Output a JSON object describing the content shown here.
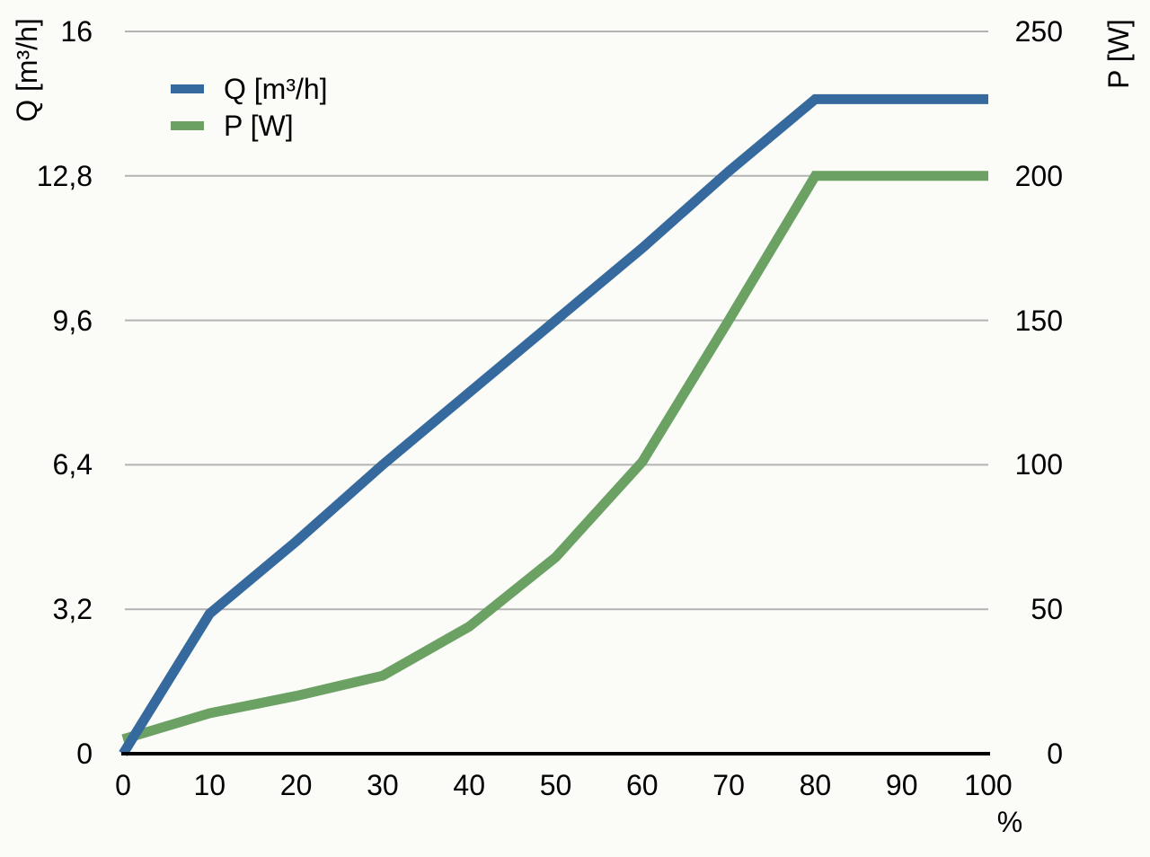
{
  "chart_data": {
    "type": "line",
    "title": "",
    "x": [
      0,
      10,
      20,
      30,
      40,
      50,
      60,
      70,
      80,
      90,
      100
    ],
    "x_axis": {
      "tick_labels": [
        "0",
        "10",
        "20",
        "30",
        "40",
        "50",
        "60",
        "70",
        "80",
        "90",
        "100"
      ],
      "tick_values": [
        0,
        10,
        20,
        30,
        40,
        50,
        60,
        70,
        80,
        90,
        100
      ],
      "unit_label": "%",
      "range": [
        0,
        100
      ]
    },
    "left_axis": {
      "title": "Q [m³/h]",
      "tick_labels": [
        "16",
        "12,8",
        "9,6",
        "6,4",
        "3,2",
        "0"
      ],
      "tick_values": [
        16,
        12.8,
        9.6,
        6.4,
        3.2,
        0
      ],
      "range": [
        0,
        16
      ]
    },
    "right_axis": {
      "title": "P [W]",
      "tick_labels": [
        "250",
        "200",
        "150",
        "100",
        "50",
        "0"
      ],
      "tick_values": [
        250,
        200,
        150,
        100,
        50,
        0
      ],
      "range": [
        0,
        250
      ]
    },
    "series": [
      {
        "name": "Q [m³/h]",
        "axis": "left",
        "color": "#36699d",
        "values": [
          0,
          3.1,
          4.7,
          6.4,
          8.0,
          9.6,
          11.2,
          12.9,
          14.5,
          14.5,
          14.5
        ]
      },
      {
        "name": "P [W]",
        "axis": "right",
        "color": "#6ba163",
        "values": [
          5,
          14,
          20,
          27,
          44,
          68,
          101,
          150,
          200,
          200,
          200
        ]
      }
    ],
    "legend": {
      "position": "top-left-inside",
      "entries": [
        {
          "label": "Q [m³/h]",
          "color": "#36699d"
        },
        {
          "label": "P [W]",
          "color": "#6ba163"
        }
      ]
    },
    "grid": {
      "show": true,
      "color": "#b3b3b3"
    },
    "axis_line_color": "#000000",
    "line_width": 11
  }
}
